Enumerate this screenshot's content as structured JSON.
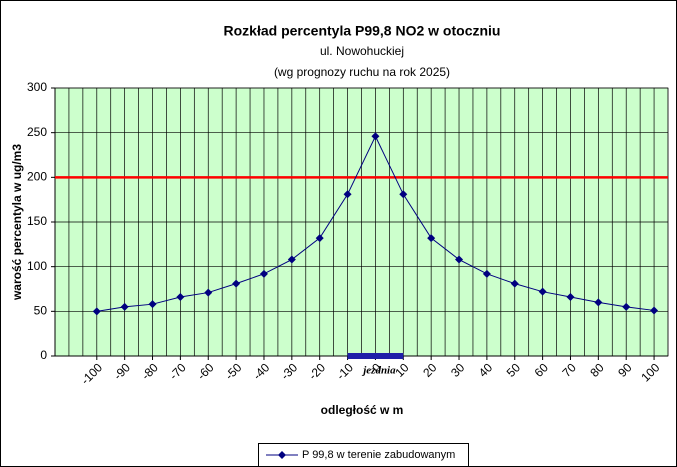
{
  "chart_data": {
    "type": "line",
    "title": "Rozkład percentyla P99,8 NO2 w otoczniu",
    "subtitle": "ul. Nowohuckiej",
    "subtitle2": "(wg prognozy ruchu na rok 2025)",
    "x_label": "odległość w m",
    "y_label": "warość percentyla w ug/m3",
    "x": [
      -100,
      -90,
      -80,
      -70,
      -60,
      -50,
      -40,
      -30,
      -20,
      -10,
      0,
      10,
      20,
      30,
      40,
      50,
      60,
      70,
      80,
      90,
      100
    ],
    "series": [
      {
        "name": "P 99,8 w terenie zabudowanym",
        "color": "#000080",
        "values": [
          50,
          55,
          58,
          66,
          71,
          81,
          92,
          108,
          132,
          181,
          246,
          181,
          132,
          108,
          92,
          81,
          72,
          66,
          60,
          55,
          51
        ]
      }
    ],
    "xlim": [
      -115,
      105
    ],
    "xticks": [
      -100,
      -90,
      -80,
      -70,
      -60,
      -50,
      -40,
      -30,
      -20,
      -10,
      0,
      10,
      20,
      30,
      40,
      50,
      60,
      70,
      80,
      90,
      100
    ],
    "x_grid_step": 5,
    "ylim": [
      0,
      300
    ],
    "yticks": [
      0,
      50,
      100,
      150,
      200,
      250,
      300
    ],
    "grid": true,
    "plot_background": "#ccffcc",
    "reference_line": {
      "value": 200,
      "color": "#ff0000"
    },
    "annotation": {
      "text": "jezdnia",
      "x_from": -10,
      "x_to": 10,
      "color": "#1f1fa8"
    },
    "legend": "bottom"
  }
}
